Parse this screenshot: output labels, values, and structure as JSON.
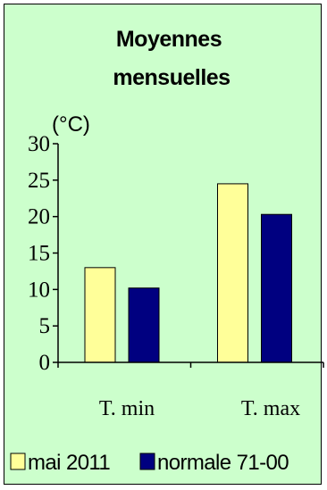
{
  "chart_data": {
    "type": "bar",
    "title_lines": [
      "Moyennes",
      "mensuelles"
    ],
    "ylabel": "(°C)",
    "xlabel": "",
    "ylim": [
      0,
      30
    ],
    "yticks": [
      "0",
      "5",
      "10",
      "15",
      "20",
      "25",
      "30"
    ],
    "categories": [
      "T. min",
      "T. max"
    ],
    "series": [
      {
        "name": "mai 2011",
        "color": "#ffff99",
        "values": [
          13.0,
          24.5
        ]
      },
      {
        "name": "normale 71-00",
        "color": "#000080",
        "values": [
          10.2,
          20.3
        ]
      }
    ],
    "grid": false,
    "legend_position": "bottom",
    "background": "#ccffcc"
  }
}
